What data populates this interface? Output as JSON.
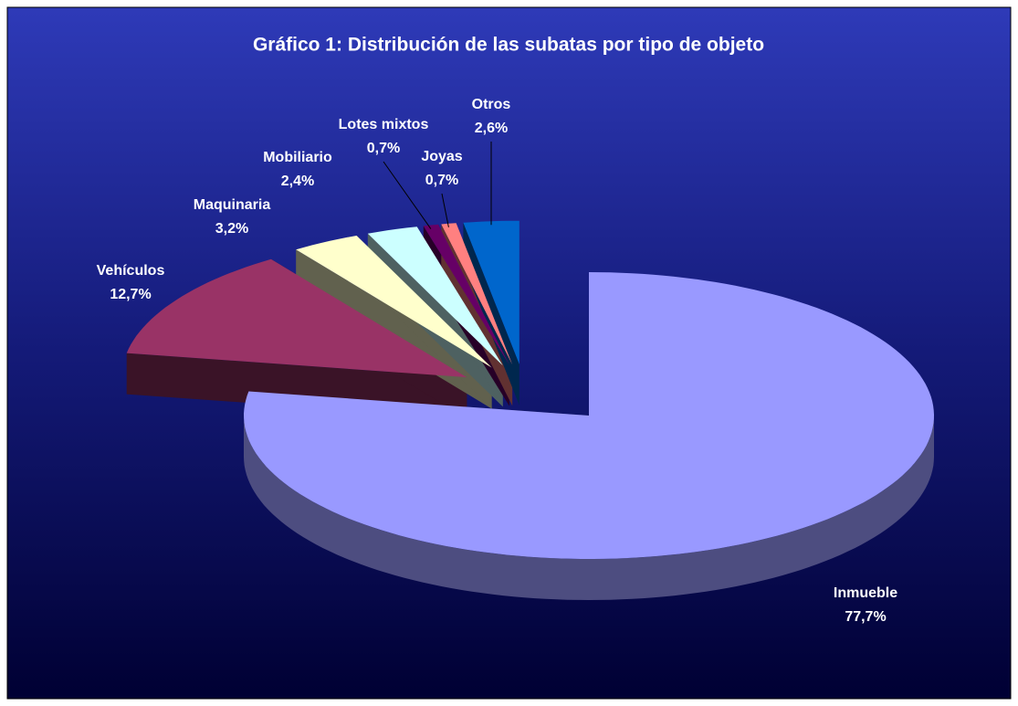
{
  "chart_data": {
    "type": "pie3d",
    "title": "Gráfico 1: Distribución de las subatas por tipo de objeto",
    "categories": [
      "Inmueble",
      "Vehículos",
      "Maquinaria",
      "Mobiliario",
      "Lotes mixtos",
      "Joyas",
      "Otros"
    ],
    "values": [
      77.7,
      12.7,
      3.2,
      2.4,
      0.7,
      0.7,
      2.6
    ],
    "value_labels": [
      "77,7%",
      "12,7%",
      "3,2%",
      "2,4%",
      "0,7%",
      "0,7%",
      "2,6%"
    ],
    "colors": [
      "#9999ff",
      "#993366",
      "#ffffcc",
      "#ccffff",
      "#660066",
      "#ff8080",
      "#0066cc"
    ]
  }
}
